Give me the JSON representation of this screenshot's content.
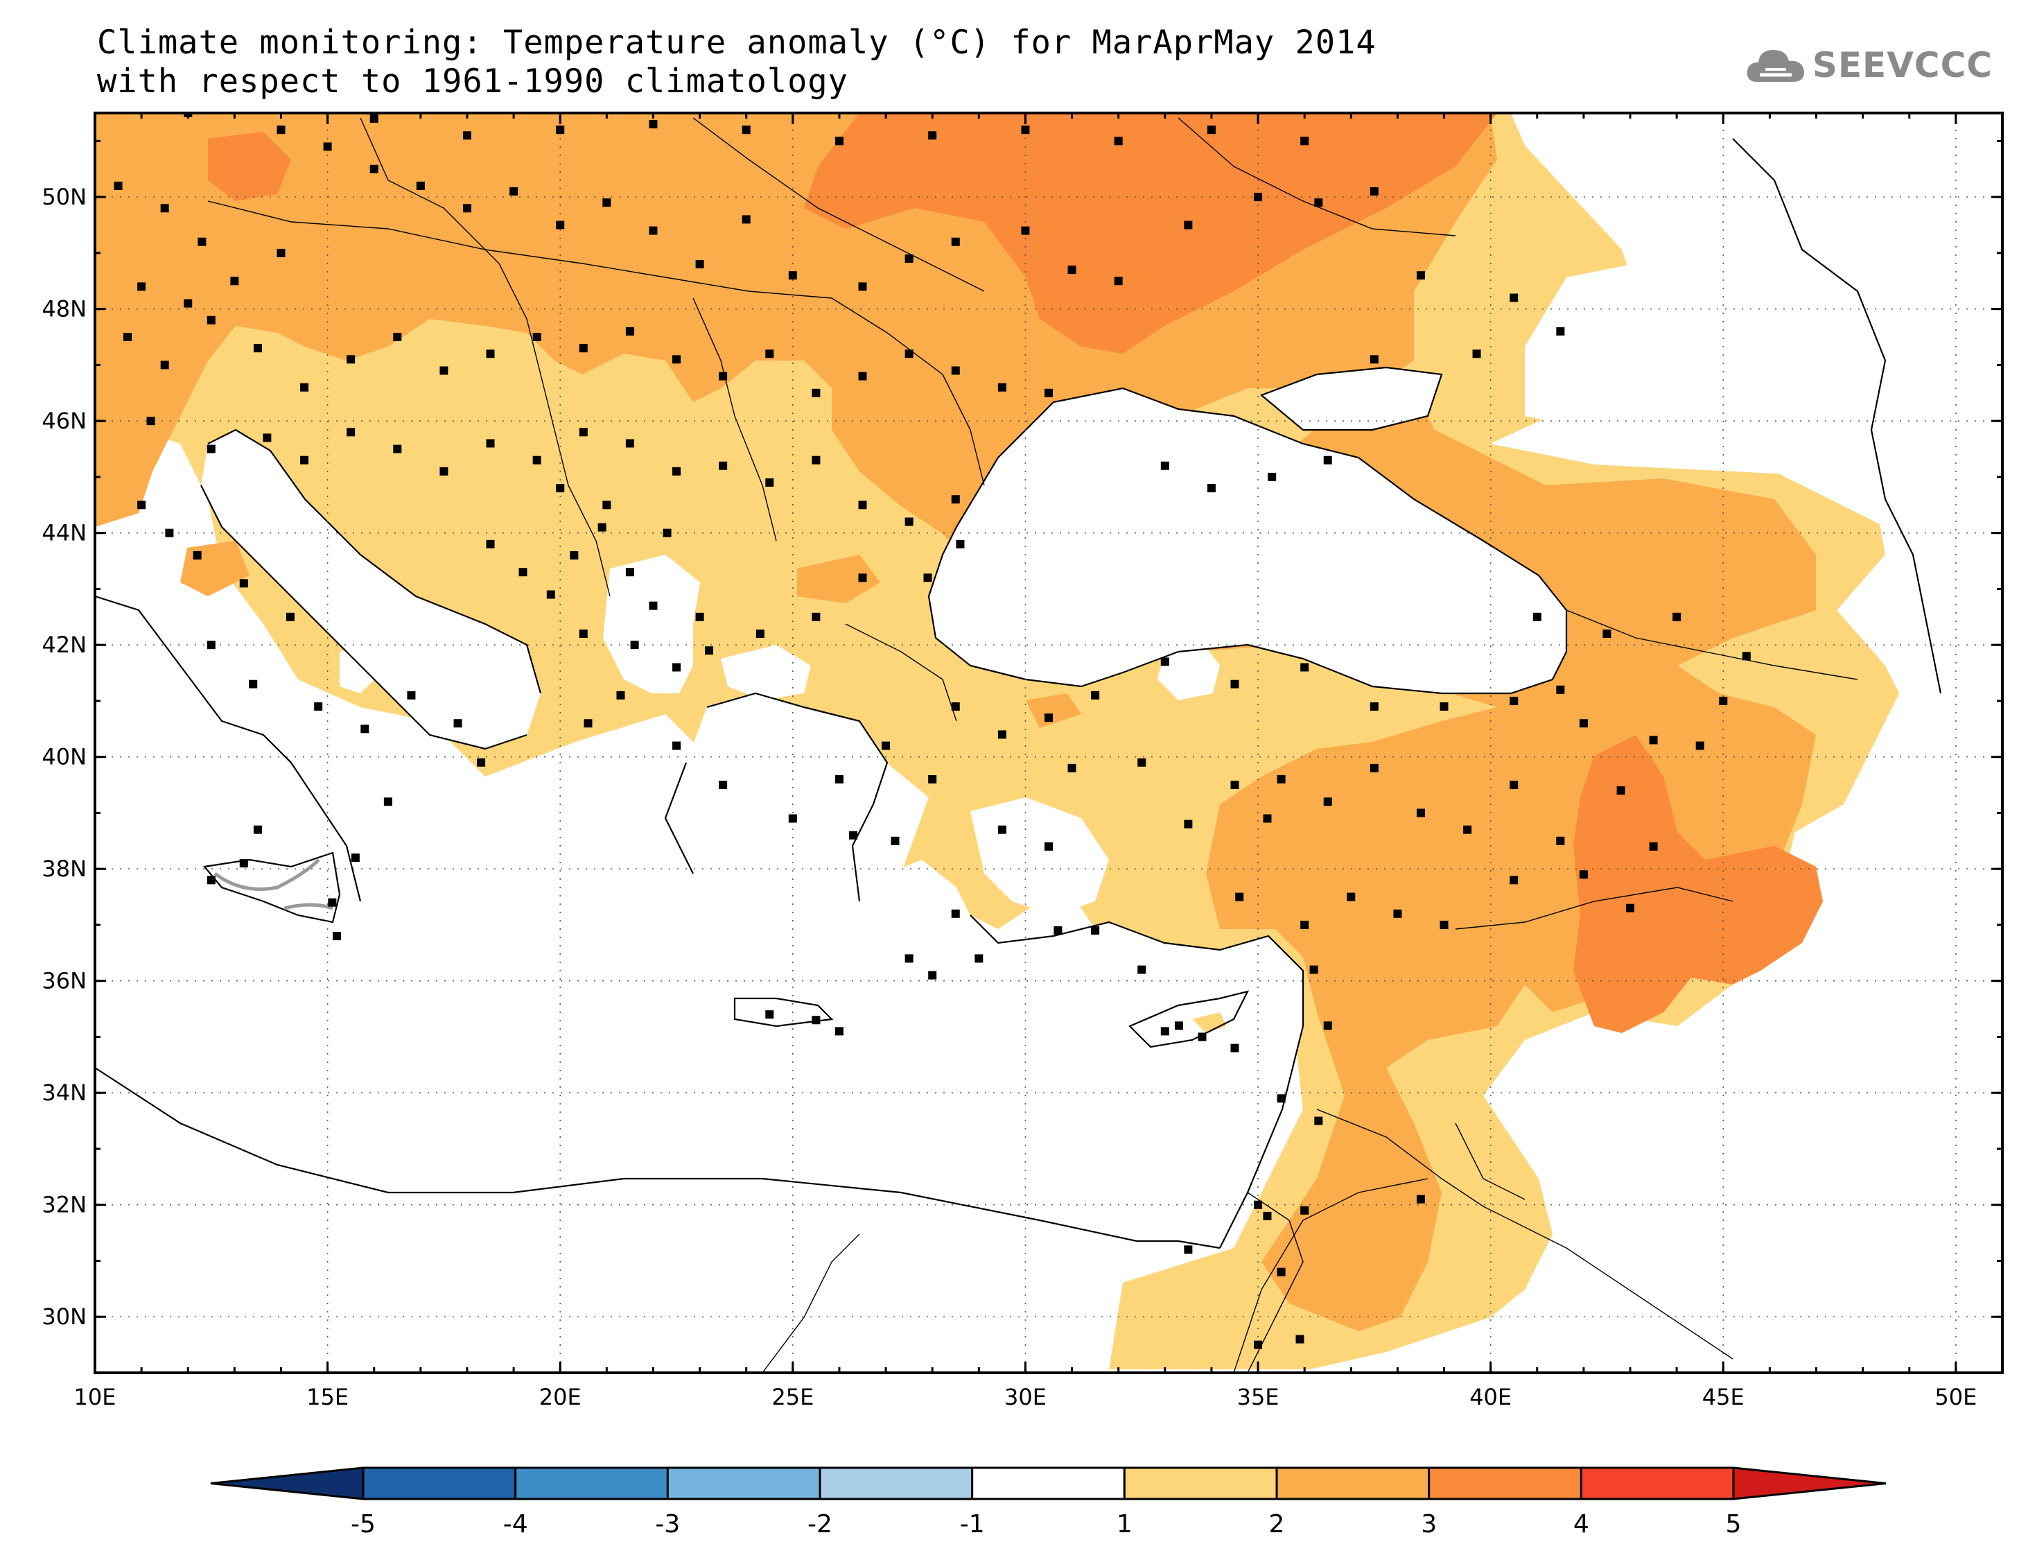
{
  "title": {
    "line1": "Climate monitoring: Temperature anomaly (°C) for MarAprMay 2014",
    "line2": "with respect to 1961-1990 climatology"
  },
  "logo": {
    "text": "SEEVCCC",
    "icon": "cloud-icon",
    "color": "#8a8a8a"
  },
  "map": {
    "lon_range": [
      10,
      51
    ],
    "lat_range": [
      29,
      51.5
    ],
    "lon_ticks": [
      "10E",
      "15E",
      "20E",
      "25E",
      "30E",
      "35E",
      "40E",
      "45E",
      "50E"
    ],
    "lat_ticks": [
      "30N",
      "32N",
      "34N",
      "36N",
      "38N",
      "40N",
      "42N",
      "44N",
      "46N",
      "48N",
      "50N"
    ],
    "grid": "dotted",
    "stations": "black-squares"
  },
  "colorbar": {
    "labels": [
      "-5",
      "-4",
      "-3",
      "-2",
      "-1",
      "1",
      "2",
      "3",
      "4",
      "5"
    ],
    "colors": [
      "#0d2f6b",
      "#1f63a8",
      "#3f8dc6",
      "#74b3dc",
      "#a9cee6",
      "#ffffff",
      "#fdd67a",
      "#fbac4b",
      "#f98b3a",
      "#f5442a",
      "#d11a1a"
    ],
    "extend": "both"
  },
  "anomaly_colors": {
    "c1_2": "#fdd67a",
    "c2_3": "#fbac4b",
    "c3_4": "#f98b3a"
  }
}
